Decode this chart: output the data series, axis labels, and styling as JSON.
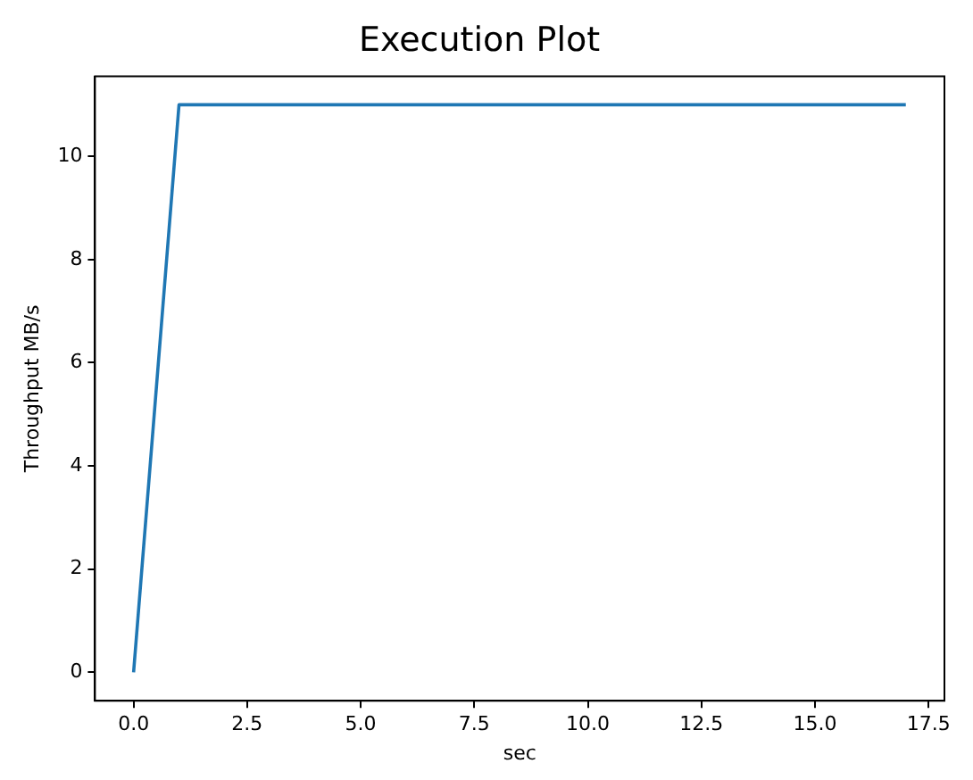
{
  "chart_data": {
    "type": "line",
    "title": "Execution Plot",
    "xlabel": "sec",
    "ylabel": "Throughput MB/s",
    "x": [
      0,
      1,
      2,
      3,
      4,
      5,
      6,
      7,
      8,
      9,
      10,
      11,
      12,
      13,
      14,
      15,
      16,
      17
    ],
    "series": [
      {
        "color": "#1f77b4",
        "values": [
          0,
          11,
          11,
          11,
          11,
          11,
          11,
          11,
          11,
          11,
          11,
          11,
          11,
          11,
          11,
          11,
          11,
          11
        ]
      }
    ],
    "xlim": [
      -0.85,
      17.85
    ],
    "xticks": [
      {
        "value": 0,
        "label": "0.0"
      },
      2.5,
      {
        "value": 5,
        "label": "5.0"
      },
      7.5,
      {
        "value": 10,
        "label": "10.0"
      },
      12.5,
      {
        "value": 15,
        "label": "15.0"
      },
      17.5
    ],
    "ylim": [
      -0.55,
      11.55
    ],
    "yticks": [
      0,
      2,
      4,
      6,
      8,
      10
    ],
    "grid": false,
    "legend": false,
    "marker": "none",
    "line_style": "solid"
  }
}
